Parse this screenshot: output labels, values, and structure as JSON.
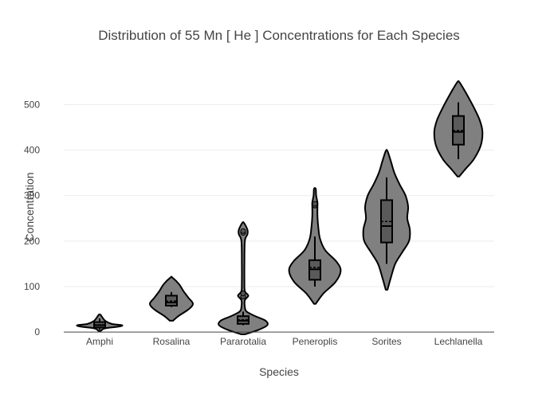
{
  "chart_data": {
    "type": "violin",
    "title": "Distribution of 55  Mn  [ He ]  Concentrations for Each Species",
    "xlabel": "Species",
    "ylabel": "Concentration",
    "ylim": [
      -5,
      555
    ],
    "yticks": [
      0,
      100,
      200,
      300,
      400,
      500
    ],
    "grid": true,
    "categories": [
      "Amphi",
      "Rosalina",
      "Pararotalia",
      "Peneroplis",
      "Sorites",
      "Lechlanella"
    ],
    "fill_color": "#808080",
    "outline_color": "#000000",
    "series": [
      {
        "name": "Amphi",
        "range": [
          2,
          38
        ],
        "box": {
          "q1": 10,
          "median": 15,
          "mean": 16,
          "q3": 22,
          "lower_fence": 5,
          "upper_fence": 30
        },
        "outliers": [],
        "density": [
          [
            2,
            1
          ],
          [
            8,
            6
          ],
          [
            12,
            22
          ],
          [
            15,
            26
          ],
          [
            18,
            14
          ],
          [
            24,
            7
          ],
          [
            30,
            4
          ],
          [
            38,
            1
          ]
        ]
      },
      {
        "name": "Rosalina",
        "range": [
          25,
          120
        ],
        "box": {
          "q1": 58,
          "median": 65,
          "mean": 68,
          "q3": 80,
          "lower_fence": 55,
          "upper_fence": 88
        },
        "outliers": [],
        "density": [
          [
            25,
            2
          ],
          [
            35,
            8
          ],
          [
            50,
            20
          ],
          [
            62,
            25
          ],
          [
            75,
            20
          ],
          [
            90,
            14
          ],
          [
            105,
            9
          ],
          [
            120,
            1
          ]
        ]
      },
      {
        "name": "Pararotalia",
        "range": [
          -5,
          240
        ],
        "box": {
          "q1": 18,
          "median": 25,
          "mean": 27,
          "q3": 35,
          "lower_fence": 15,
          "upper_fence": 45
        },
        "outliers": [
          78,
          85,
          218,
          222
        ],
        "density": [
          [
            -5,
            2
          ],
          [
            5,
            18
          ],
          [
            15,
            28
          ],
          [
            25,
            26
          ],
          [
            35,
            14
          ],
          [
            45,
            4
          ],
          [
            55,
            2
          ],
          [
            70,
            2
          ],
          [
            80,
            6
          ],
          [
            90,
            2
          ],
          [
            110,
            1.5
          ],
          [
            150,
            1.5
          ],
          [
            200,
            2
          ],
          [
            215,
            5
          ],
          [
            225,
            5
          ],
          [
            240,
            1
          ]
        ]
      },
      {
        "name": "Peneroplis",
        "range": [
          62,
          315
        ],
        "box": {
          "q1": 115,
          "median": 138,
          "mean": 142,
          "q3": 158,
          "lower_fence": 100,
          "upper_fence": 210
        },
        "outliers": [
          278,
          282
        ],
        "density": [
          [
            62,
            1
          ],
          [
            85,
            10
          ],
          [
            110,
            24
          ],
          [
            135,
            30
          ],
          [
            155,
            25
          ],
          [
            180,
            12
          ],
          [
            205,
            6
          ],
          [
            230,
            4
          ],
          [
            255,
            3
          ],
          [
            275,
            3
          ],
          [
            285,
            3
          ],
          [
            300,
            1.5
          ],
          [
            315,
            1
          ]
        ]
      },
      {
        "name": "Sorites",
        "range": [
          93,
          398
        ],
        "box": {
          "q1": 197,
          "median": 233,
          "mean": 243,
          "q3": 290,
          "lower_fence": 150,
          "upper_fence": 340
        },
        "outliers": [],
        "density": [
          [
            93,
            1
          ],
          [
            120,
            5
          ],
          [
            150,
            10
          ],
          [
            175,
            18
          ],
          [
            200,
            26
          ],
          [
            225,
            27
          ],
          [
            250,
            24
          ],
          [
            275,
            25
          ],
          [
            300,
            22
          ],
          [
            325,
            15
          ],
          [
            350,
            9
          ],
          [
            375,
            5
          ],
          [
            398,
            1
          ]
        ]
      },
      {
        "name": "Lechlanella",
        "range": [
          342,
          550
        ],
        "box": {
          "q1": 412,
          "median": 440,
          "mean": 443,
          "q3": 475,
          "lower_fence": 380,
          "upper_fence": 505
        },
        "outliers": [],
        "density": [
          [
            342,
            1
          ],
          [
            360,
            9
          ],
          [
            380,
            18
          ],
          [
            410,
            26
          ],
          [
            440,
            28
          ],
          [
            465,
            25
          ],
          [
            490,
            19
          ],
          [
            515,
            12
          ],
          [
            535,
            6
          ],
          [
            550,
            1
          ]
        ]
      }
    ]
  }
}
